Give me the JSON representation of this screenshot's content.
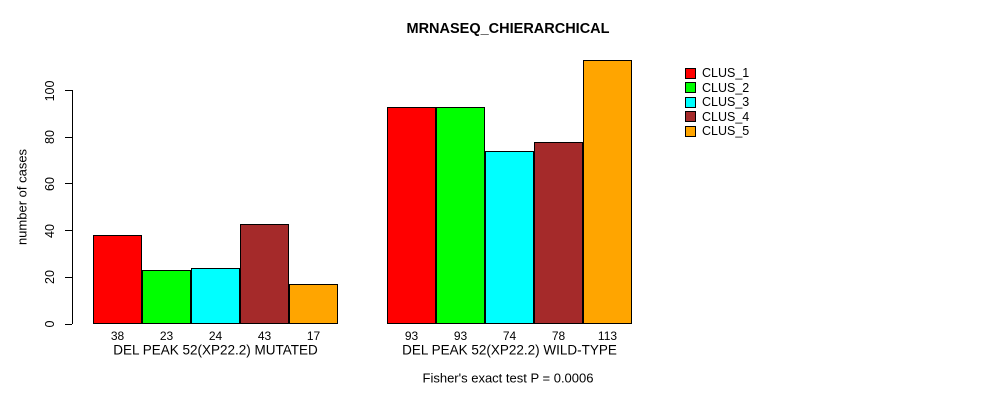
{
  "chart_data": {
    "type": "bar",
    "title": "MRNASEQ_CHIERARCHICAL",
    "ylabel": "number of cases",
    "xlabel": "",
    "footnote": "Fisher's exact test P = 0.0006",
    "ylim": [
      0,
      117
    ],
    "yticks": [
      0,
      20,
      40,
      60,
      80,
      100
    ],
    "grid": false,
    "legend_position": "right-outside",
    "bar_value_labels": true,
    "categories": [
      "DEL PEAK 52(XP22.2) MUTATED",
      "DEL PEAK 52(XP22.2) WILD-TYPE"
    ],
    "series": [
      {
        "name": "CLUS_1",
        "color": "#FF0000",
        "values": [
          38,
          93
        ]
      },
      {
        "name": "CLUS_2",
        "color": "#00FF00",
        "values": [
          23,
          93
        ]
      },
      {
        "name": "CLUS_3",
        "color": "#00FFFF",
        "values": [
          24,
          74
        ]
      },
      {
        "name": "CLUS_4",
        "color": "#A52A2A",
        "values": [
          43,
          78
        ]
      },
      {
        "name": "CLUS_5",
        "color": "#FFA500",
        "values": [
          17,
          113
        ]
      }
    ]
  }
}
